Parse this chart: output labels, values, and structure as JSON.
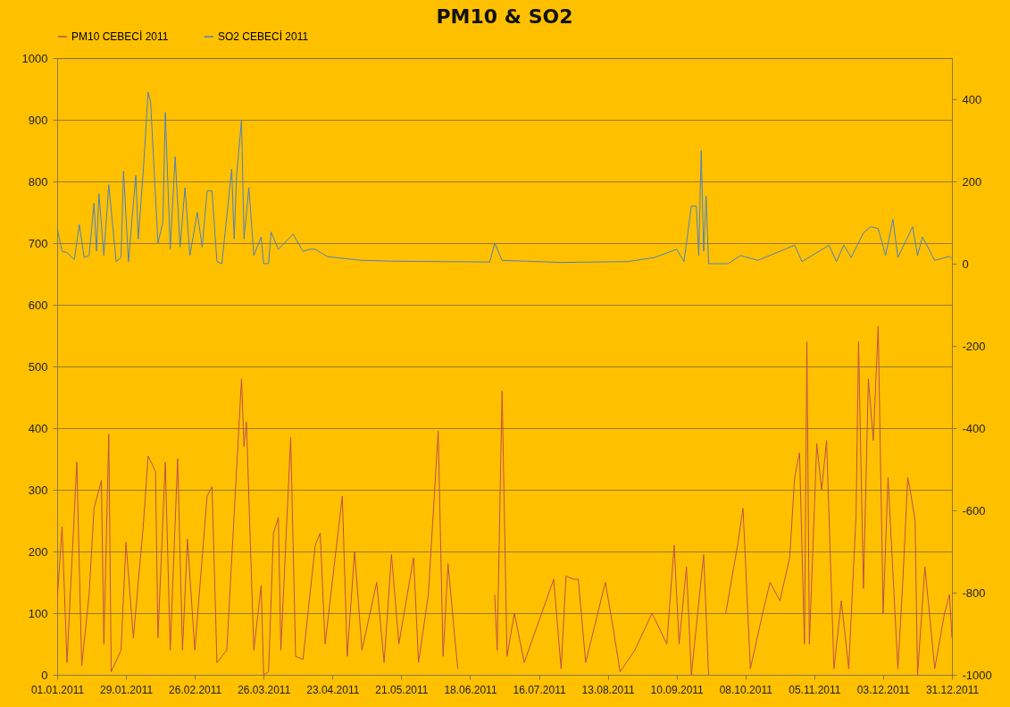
{
  "chart_data": {
    "type": "line",
    "title": "PM10 & SO2",
    "legend": "top",
    "grid": "y",
    "xlim": [
      "2011-01-01",
      "2011-12-31"
    ],
    "xticks": [
      {
        "value": "2011-01-01",
        "label": "01.01.2011"
      },
      {
        "value": "2011-01-29",
        "label": "29.01.2011"
      },
      {
        "value": "2011-02-26",
        "label": "26.02.2011"
      },
      {
        "value": "2011-03-26",
        "label": "26.03.2011"
      },
      {
        "value": "2011-04-23",
        "label": "23.04.2011"
      },
      {
        "value": "2011-05-21",
        "label": "21.05.2011"
      },
      {
        "value": "2011-06-18",
        "label": "18.06.2011"
      },
      {
        "value": "2011-07-16",
        "label": "16.07.2011"
      },
      {
        "value": "2011-08-13",
        "label": "13.08.2011"
      },
      {
        "value": "2011-09-10",
        "label": "10.09.2011"
      },
      {
        "value": "2011-10-08",
        "label": "08.10.2011"
      },
      {
        "value": "2011-11-05",
        "label": "05.11.2011"
      },
      {
        "value": "2011-12-03",
        "label": "03.12.2011"
      },
      {
        "value": "2011-12-31",
        "label": "31.12.2011"
      }
    ],
    "ylim": [
      0,
      1000
    ],
    "yticks": [
      0,
      100,
      200,
      300,
      400,
      500,
      600,
      700,
      800,
      900,
      1000
    ],
    "y2lim": [
      -1000,
      500
    ],
    "y2ticks": [
      -1000,
      -800,
      -600,
      -400,
      -200,
      0,
      200,
      400
    ],
    "series": [
      {
        "name": "PM10  CEBECİ  2011",
        "color": "#c0504d",
        "x": [
          "2011-01-01",
          "2011-01-03",
          "2011-01-05",
          "2011-01-09",
          "2011-01-11",
          "2011-01-14",
          "2011-01-16",
          "2011-01-19",
          "2011-01-20",
          "2011-01-22",
          "2011-01-23",
          "2011-01-27",
          "2011-01-29",
          "2011-02-01",
          "2011-02-05",
          "2011-02-07",
          "2011-02-10",
          "2011-02-11",
          "2011-02-14",
          "2011-02-16",
          "2011-02-19",
          "2011-02-21",
          "2011-02-23",
          "2011-02-26",
          "2011-03-03",
          "2011-03-05",
          "2011-03-07",
          "2011-03-11",
          "2011-03-14",
          "2011-03-17",
          "2011-03-18",
          "2011-03-19",
          "2011-03-22",
          "2011-03-25",
          "2011-03-26",
          "2011-03-28",
          "2011-03-30",
          "2011-04-01",
          "2011-04-02",
          "2011-04-06",
          "2011-04-08",
          "2011-04-11",
          "2011-04-16",
          "2011-04-18",
          "2011-04-20",
          "2011-04-27",
          "2011-04-29",
          "2011-05-02",
          "2011-05-05",
          "2011-05-11",
          "2011-05-14",
          "2011-05-17",
          "2011-05-20",
          "2011-05-26",
          "2011-05-28",
          "2011-06-01",
          "2011-06-05",
          "2011-06-07",
          "2011-06-09",
          "2011-06-12",
          "2011-06-13",
          "2011-06-14",
          "2011-06-28",
          "2011-06-29",
          "2011-07-01",
          "2011-07-03",
          "2011-07-06",
          "2011-07-10",
          "2011-07-22",
          "2011-07-25",
          "2011-07-27",
          "2011-07-30",
          "2011-08-01",
          "2011-08-04",
          "2011-08-12",
          "2011-08-15",
          "2011-08-18",
          "2011-08-24",
          "2011-08-31",
          "2011-09-06",
          "2011-09-09",
          "2011-09-11",
          "2011-09-14",
          "2011-09-16",
          "2011-09-21",
          "2011-09-23",
          "2011-09-26",
          "2011-09-30",
          "2011-10-05",
          "2011-10-07",
          "2011-10-10",
          "2011-10-15",
          "2011-10-18",
          "2011-10-22",
          "2011-10-26",
          "2011-10-28",
          "2011-10-30",
          "2011-11-01",
          "2011-11-02",
          "2011-11-03",
          "2011-11-06",
          "2011-11-08",
          "2011-11-10",
          "2011-11-13",
          "2011-11-16",
          "2011-11-19",
          "2011-11-22",
          "2011-11-23",
          "2011-11-25",
          "2011-11-27",
          "2011-11-29",
          "2011-12-01",
          "2011-12-03",
          "2011-12-05",
          "2011-12-09",
          "2011-12-11",
          "2011-12-13",
          "2011-12-14",
          "2011-12-16",
          "2011-12-17",
          "2011-12-20",
          "2011-12-24",
          "2011-12-28",
          "2011-12-30",
          "2011-12-31"
        ],
        "values": [
          120,
          240,
          20,
          345,
          15,
          130,
          270,
          315,
          50,
          390,
          5,
          40,
          215,
          60,
          240,
          355,
          330,
          60,
          345,
          40,
          350,
          40,
          220,
          40,
          290,
          305,
          20,
          40,
          260,
          480,
          370,
          410,
          40,
          145,
          0,
          5,
          230,
          255,
          40,
          385,
          30,
          25,
          210,
          230,
          50,
          290,
          30,
          200,
          40,
          150,
          20,
          195,
          50,
          190,
          20,
          130,
          395,
          30,
          180,
          50,
          10,
          null,
          130,
          40,
          460,
          30,
          100,
          20,
          155,
          10,
          160,
          155,
          155,
          20,
          150,
          80,
          5,
          40,
          100,
          50,
          210,
          50,
          175,
          0,
          195,
          0,
          null,
          100,
          215,
          270,
          10,
          100,
          150,
          120,
          190,
          320,
          360,
          50,
          540,
          50,
          375,
          300,
          380,
          10,
          120,
          10,
          260,
          540,
          140,
          480,
          380,
          565,
          100,
          320,
          10,
          150,
          320,
          300,
          250,
          0,
          175,
          10,
          100,
          130,
          60
        ]
      },
      {
        "name": "SO2  CEBECİ  2011",
        "color": "#4f81bd",
        "axis": "y2",
        "x": [
          "2011-01-01",
          "2011-01-03",
          "2011-01-05",
          "2011-01-08",
          "2011-01-10",
          "2011-01-12",
          "2011-01-14",
          "2011-01-16",
          "2011-01-17",
          "2011-01-18",
          "2011-01-20",
          "2011-01-22",
          "2011-01-25",
          "2011-01-27",
          "2011-01-28",
          "2011-01-30",
          "2011-02-02",
          "2011-02-03",
          "2011-02-05",
          "2011-02-07",
          "2011-02-08",
          "2011-02-11",
          "2011-02-13",
          "2011-02-14",
          "2011-02-16",
          "2011-02-18",
          "2011-02-20",
          "2011-02-22",
          "2011-02-24",
          "2011-02-27",
          "2011-03-01",
          "2011-03-03",
          "2011-03-05",
          "2011-03-07",
          "2011-03-09",
          "2011-03-13",
          "2011-03-14",
          "2011-03-15",
          "2011-03-17",
          "2011-03-18",
          "2011-03-20",
          "2011-03-22",
          "2011-03-25",
          "2011-03-26",
          "2011-03-28",
          "2011-03-29",
          "2011-04-01",
          "2011-04-07",
          "2011-04-11",
          "2011-04-14",
          "2011-04-16",
          "2011-04-21",
          "2011-05-05",
          "2011-05-18",
          "2011-06-07",
          "2011-06-26",
          "2011-06-28",
          "2011-07-01",
          "2011-07-25",
          "2011-08-21",
          "2011-09-01",
          "2011-09-10",
          "2011-09-13",
          "2011-09-16",
          "2011-09-18",
          "2011-09-19",
          "2011-09-20",
          "2011-09-21",
          "2011-09-22",
          "2011-09-23",
          "2011-10-01",
          "2011-10-06",
          "2011-10-13",
          "2011-10-22",
          "2011-10-28",
          "2011-10-31",
          "2011-11-11",
          "2011-11-14",
          "2011-11-17",
          "2011-11-20",
          "2011-11-25",
          "2011-11-28",
          "2011-12-01",
          "2011-12-04",
          "2011-12-07",
          "2011-12-09",
          "2011-12-15",
          "2011-12-17",
          "2011-12-19",
          "2011-12-24",
          "2011-12-30",
          "2011-12-31"
        ],
        "values": [
          87,
          30,
          27,
          10,
          95,
          15,
          20,
          147,
          30,
          170,
          20,
          192,
          5,
          15,
          225,
          5,
          215,
          60,
          222,
          417,
          395,
          50,
          100,
          368,
          35,
          260,
          40,
          185,
          20,
          125,
          40,
          177,
          177,
          5,
          0,
          230,
          60,
          215,
          350,
          60,
          185,
          20,
          65,
          0,
          0,
          77,
          35,
          72,
          30,
          35,
          35,
          17,
          8,
          6,
          5,
          4,
          50,
          8,
          3,
          5,
          15,
          35,
          5,
          140,
          140,
          20,
          275,
          30,
          165,
          0,
          0,
          20,
          8,
          30,
          45,
          5,
          45,
          5,
          45,
          15,
          75,
          90,
          85,
          20,
          108,
          15,
          90,
          20,
          65,
          8,
          18,
          12
        ]
      }
    ]
  }
}
